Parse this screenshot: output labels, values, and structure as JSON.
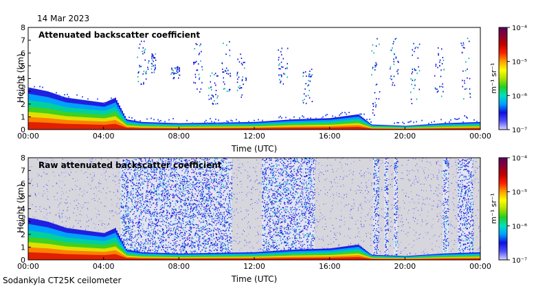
{
  "figure": {
    "date": "14 Mar 2023",
    "footer": "Sodankyla CT25K ceilometer"
  },
  "colorbar": {
    "stops": [
      "#d6d6ff",
      "#5050ff",
      "#1010e0",
      "#00a0ff",
      "#00e0c0",
      "#20d020",
      "#b0e000",
      "#ffff00",
      "#ffa000",
      "#ff2000",
      "#c00000",
      "#8b0030",
      "#5a0060"
    ]
  },
  "chart_data": [
    {
      "type": "heatmap",
      "title": "Attenuated backscatter coefficient",
      "xlabel": "Time (UTC)",
      "ylabel": "Height (km)",
      "xlim": [
        0,
        24
      ],
      "ylim": [
        0,
        8
      ],
      "xticks": [
        "00:00",
        "04:00",
        "08:00",
        "12:00",
        "16:00",
        "20:00",
        "00:00"
      ],
      "yticks": [
        "0",
        "1",
        "2",
        "3",
        "4",
        "5",
        "6",
        "7",
        "8"
      ],
      "colorbar": {
        "label": "m⁻¹ sr⁻¹",
        "scale": "log",
        "ticks": [
          "10⁻⁷",
          "10⁻⁶",
          "10⁻⁵",
          "10⁻⁴"
        ]
      },
      "boundary_layer_top_km": [
        [
          0,
          3.3
        ],
        [
          1,
          3.0
        ],
        [
          2,
          2.5
        ],
        [
          3,
          2.3
        ],
        [
          4,
          2.1
        ],
        [
          4.6,
          2.5
        ],
        [
          5.2,
          0.8
        ],
        [
          6,
          0.6
        ],
        [
          8,
          0.5
        ],
        [
          10,
          0.55
        ],
        [
          12,
          0.6
        ],
        [
          14,
          0.8
        ],
        [
          16,
          0.9
        ],
        [
          17.5,
          1.2
        ],
        [
          18.2,
          0.4
        ],
        [
          20,
          0.3
        ],
        [
          22,
          0.5
        ],
        [
          24,
          0.6
        ]
      ]
    },
    {
      "type": "heatmap",
      "title": "Raw attenuated backscatter coefficient",
      "xlabel": "Time (UTC)",
      "ylabel": "Height (km)",
      "xlim": [
        0,
        24
      ],
      "ylim": [
        0,
        8
      ],
      "xticks": [
        "00:00",
        "04:00",
        "08:00",
        "12:00",
        "16:00",
        "20:00",
        "00:00"
      ],
      "yticks": [
        "0",
        "1",
        "2",
        "3",
        "4",
        "5",
        "6",
        "7",
        "8"
      ],
      "colorbar": {
        "label": "m⁻¹ sr⁻¹",
        "scale": "log",
        "ticks": [
          "10⁻⁷",
          "10⁻⁶",
          "10⁻⁵",
          "10⁻⁴"
        ]
      },
      "noise_bands_hours": [
        [
          4.9,
          6.1
        ],
        [
          6.1,
          10.8
        ],
        [
          9.8,
          10.2
        ],
        [
          12.4,
          14.6
        ],
        [
          14.6,
          15.2
        ],
        [
          18.3,
          18.6
        ],
        [
          18.9,
          19.1
        ],
        [
          19.4,
          19.6
        ],
        [
          22.0,
          22.3
        ],
        [
          22.8,
          23.6
        ]
      ]
    }
  ]
}
